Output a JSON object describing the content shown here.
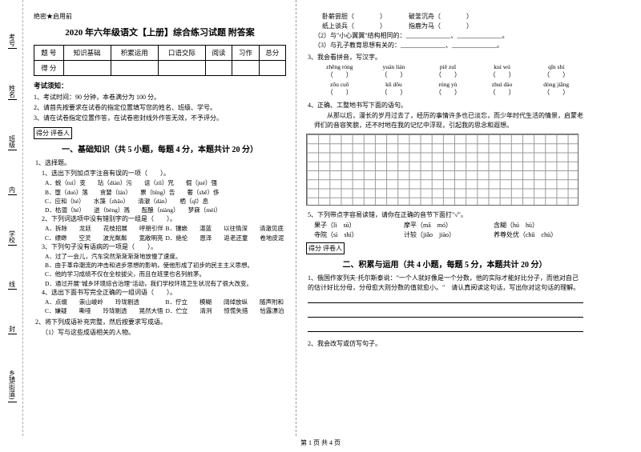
{
  "side": [
    "考号",
    "姓名",
    "班级",
    "学校",
    "乡镇(街道)"
  ],
  "hdr": {
    "secret": "绝密★启用前",
    "title": "2020 年六年级语文【上册】综合练习试题 附答案"
  },
  "score": {
    "cols": [
      "题 号",
      "知识基础",
      "积累运用",
      "口语交际",
      "阅读",
      "习作",
      "总分"
    ],
    "row": "得 分"
  },
  "notice": "考试须知：",
  "rules": [
    "1、考试时间：90 分钟，本卷满分为 100 分。",
    "2、请首先按要求在试卷的指定位置填写您的姓名、班级、学号。",
    "3、请在试卷指定位置作答，在试卷密封线外作答无效，不予评分。"
  ],
  "sec1": {
    "box": "得分  评卷人",
    "title": "一、基础知识（共 5 小题，每题 4 分，本题共计 20 分）"
  },
  "q1": {
    "num": "1、选择题。",
    "sub": "1、选出下列加点字注音有误的一项（　　）。",
    "opts": [
      "A．蜕（tuì）变　　玷（diàn）污　　诅（zǔ）咒　　倔（jué）强",
      "B．堕（duò）落　　贪婪（lán）　　票（bǐng）告　　奢（shē）侈",
      "C．应和（hè）　　水藻（zhǎo）　　清澈（dàn）　　栖（qī）息",
      "D．枯涸（hé）　　迸（bèng）溅　　酝酿（niàng）　　梦寐（mèi）"
    ],
    "sub2": "2、下列词选项中没有错别字的一组是（　　）。",
    "opts2": [
      "A．拆除　　龙廷　　花枝招展　　呼朋引伴",
      "B．镶嵌　　湛蓝　　以往情深　　清澈见底",
      "C．缥缈　　空灵　　波光粼粼　　宽敞明亮",
      "D．绝伦　　恩泽　　返老还童　　卷地皮泥"
    ],
    "sub3": "3、下列句子没有语病的一项是（　　）。",
    "opts3": [
      "A．过了一会儿，汽车突然渐渐渐渐地放慢了速度。",
      "B．由于革命潮流的冲击和进步思想的影响，使他形成了初步的民主主义思想。",
      "C．他的学习成绩不仅在全校拔尖，而且在班里也名列前茅。",
      "D．通过开展\"城乡环境综合治理\"活动，我们学校环境卫生状况有了很大改变。"
    ],
    "sub4": "4、选出下面书写完全正确的一组词语（　　）。",
    "opts4": [
      "A．点缀　　崇山峻岭　　玲珑剔透",
      "B．佇立　　模糊　　阔绰放纵　　随声附和",
      "C．嫌疑　　嘶哑　　玲珑剔透　　晃然大悟",
      "D．伫立　　清洌　　惊慌失措　　恰露漂泊"
    ]
  },
  "q2": {
    "num": "2、将下列成语补充完整，然后按要求写成语。",
    "sub": "（1）写与这些成语相关的人物。"
  },
  "col2": {
    "top": [
      "卧薪尝胆（　　　　）　　　　破釜沉舟（　　　　）",
      "纸上谈兵（　　　　）　　　　指鹿为马（　　　　）",
      "（2）与\"小心翼翼\"结构相同的：______________、______________。",
      "（3）与孔子教育思想有关的：______________、______________。"
    ],
    "q3": {
      "num": "3、我会看拼音，写汉字。"
    },
    "pin": [
      {
        "py": "zhēng róng",
        "ch": "（　　）"
      },
      {
        "py": "yuán lián",
        "ch": "（　　）"
      },
      {
        "py": "piě zuǐ",
        "ch": "（　　）"
      },
      {
        "py": "kuí wú",
        "ch": "（　　）"
      },
      {
        "py": "qīn shí",
        "ch": "（　　）"
      },
      {
        "py": "zōu cuō",
        "ch": "（　　）"
      },
      {
        "py": "kū dōu",
        "ch": "（　　）"
      },
      {
        "py": "róng yù",
        "ch": "（　　）"
      },
      {
        "py": "zhuì dào",
        "ch": "（　　）"
      },
      {
        "py": "dòng jiāng",
        "ch": "（　　）"
      }
    ],
    "q4": {
      "num": "4、正确、工整地书写下面的语句。",
      "text": "从那以后，漫长的岁月过去了，经历的事情许多也已淡忘，而少年时代生活的情景，启蒙老师们的音容笑貌，还不时地在我的记忆中浮现，引起我的思念和遐想。"
    },
    "q5": {
      "num": "5、下列带点字容易读错，请你在正确的音节下面打\"√\"。",
      "rows": [
        [
          "果子（lì　sù）",
          "摩平（mā　mó）",
          "含糊（hú　hù）"
        ],
        [
          "寺院（sì　shì）",
          "计较（jiǎo　jiào）",
          "养尊处优（chǔ　chù）"
        ]
      ]
    },
    "sec2": {
      "box": "得分  评卷人",
      "title": "二、积累与运用（共 4 小题，每题 5 分，本题共计 20 分）"
    },
    "q6": {
      "num": "1、俄国作家列夫·托尔斯泰说：\"一个人就好像是一个分数，他的实际才能好比分子，而他对自己的估计好比分母，分母愈大则分数的值就愈小。\"　请认真阅读这句话，写出你对这句话的理解。"
    },
    "q7": {
      "num": "2、我会改写或仿写句子。"
    }
  },
  "footer": "第 1 页  共 4 页"
}
